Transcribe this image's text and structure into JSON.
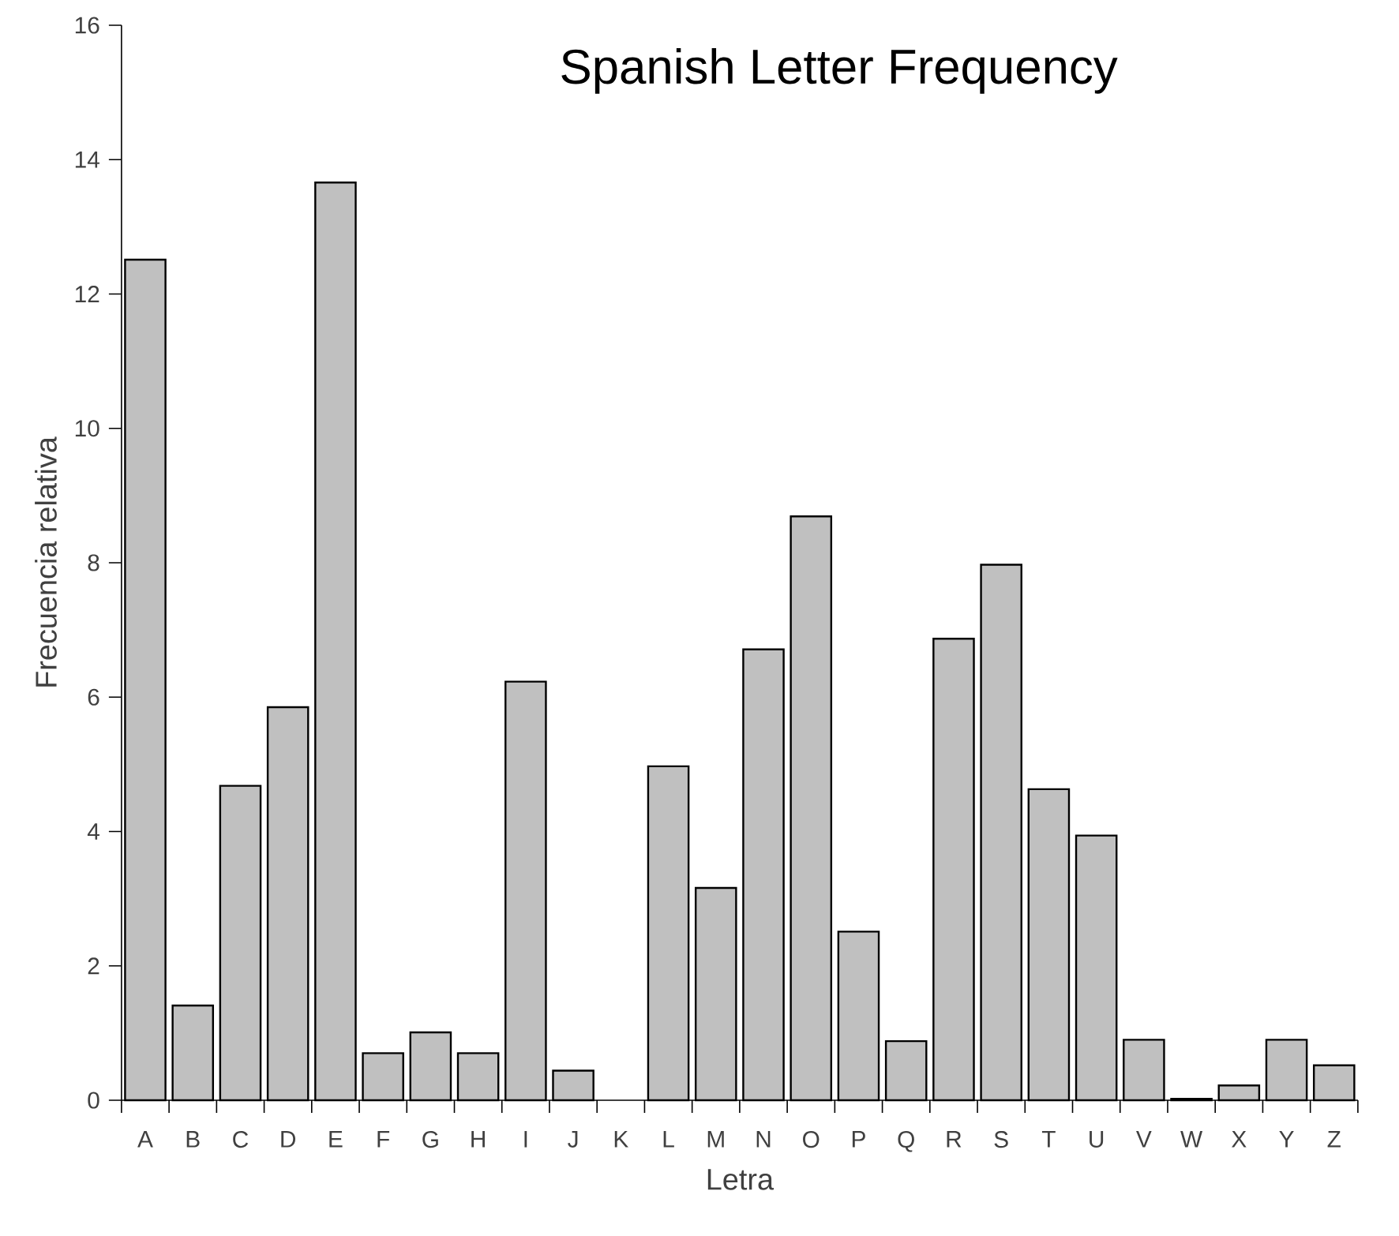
{
  "chart_data": {
    "type": "bar",
    "title": "Spanish Letter Frequency",
    "xlabel": "Letra",
    "ylabel": "Frecuencia relativa",
    "categories": [
      "A",
      "B",
      "C",
      "D",
      "E",
      "F",
      "G",
      "H",
      "I",
      "J",
      "K",
      "L",
      "M",
      "N",
      "O",
      "P",
      "Q",
      "R",
      "S",
      "T",
      "U",
      "V",
      "W",
      "X",
      "Y",
      "Z"
    ],
    "values": [
      12.51,
      1.41,
      4.68,
      5.85,
      13.66,
      0.7,
      1.01,
      0.7,
      6.23,
      0.44,
      null,
      4.97,
      3.16,
      6.71,
      8.69,
      2.51,
      0.88,
      6.87,
      7.97,
      4.63,
      3.94,
      0.9,
      0.02,
      0.22,
      0.9,
      0.52
    ],
    "color": "#c0c0c0",
    "ylim": [
      0,
      16
    ],
    "yticks": [
      0,
      2,
      4,
      6,
      8,
      10,
      12,
      14,
      16
    ],
    "grid": false
  }
}
